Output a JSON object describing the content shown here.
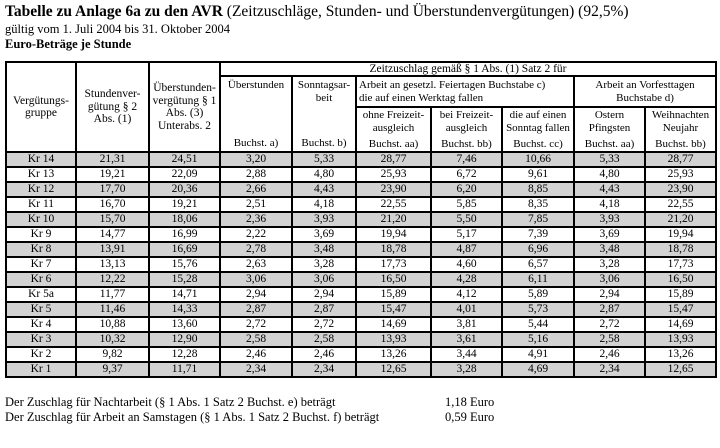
{
  "title": {
    "main_bold": "Tabelle zu Anlage 6a zu den AVR",
    "main_rest": " (Zeitzuschläge, Stunden- und Überstundenvergütungen) (92,5%)",
    "validity": "gültig vom 1. Juli 2004 bis 31. Oktober 2004",
    "subtitle": "Euro-Beträge je Stunde"
  },
  "table": {
    "header": {
      "col_group": "Vergütungs-\ngruppe",
      "col_hourly": "Stundenver-\ngütung § 2\nAbs. (1)",
      "col_overtime_pay": "Überstunden-\nvergütung § 1\nAbs. (3)\nUnterabs. 2",
      "zeitzuschlag_span": "Zeitzuschlag gemäß § 1 Abs. (1) Satz 2 für",
      "col_overtime": {
        "label": "Überstunden",
        "buchst": "Buchst. a)"
      },
      "col_sunday": {
        "label": "Sonntagsar-\nbeit",
        "buchst": "Buchst. b)"
      },
      "feiertage_group": "Arbeit an gesetzl. Feiertagen Buchstabe c)\ndie auf einen Werktag fallen",
      "vorfest_group": "Arbeit an Vorfesttagen\nBuchstabe d)",
      "sub_ohne": {
        "label": "ohne Freizeit-\nausgleich",
        "buchst": "Buchst. aa)"
      },
      "sub_bei": {
        "label": "bei Freizeit-\nausgleich",
        "buchst": "Buchst. bb)"
      },
      "sub_sonntag": {
        "label": "die auf einen\nSonntag fallen",
        "buchst": "Buchst. cc)"
      },
      "sub_ostern": {
        "label": "Ostern\nPfingsten",
        "buchst": "Buchst. aa)"
      },
      "sub_weihnachten": {
        "label": "Weihnachten\nNeujahr",
        "buchst": "Buchst. bb)"
      }
    },
    "rows": [
      {
        "group": "Kr 14",
        "values": [
          "21,31",
          "24,51",
          "3,20",
          "5,33",
          "28,77",
          "7,46",
          "10,66",
          "5,33",
          "28,77"
        ]
      },
      {
        "group": "Kr 13",
        "values": [
          "19,21",
          "22,09",
          "2,88",
          "4,80",
          "25,93",
          "6,72",
          "9,61",
          "4,80",
          "25,93"
        ]
      },
      {
        "group": "Kr 12",
        "values": [
          "17,70",
          "20,36",
          "2,66",
          "4,43",
          "23,90",
          "6,20",
          "8,85",
          "4,43",
          "23,90"
        ]
      },
      {
        "group": "Kr 11",
        "values": [
          "16,70",
          "19,21",
          "2,51",
          "4,18",
          "22,55",
          "5,85",
          "8,35",
          "4,18",
          "22,55"
        ]
      },
      {
        "group": "Kr 10",
        "values": [
          "15,70",
          "18,06",
          "2,36",
          "3,93",
          "21,20",
          "5,50",
          "7,85",
          "3,93",
          "21,20"
        ]
      },
      {
        "group": "Kr 9",
        "values": [
          "14,77",
          "16,99",
          "2,22",
          "3,69",
          "19,94",
          "5,17",
          "7,39",
          "3,69",
          "19,94"
        ]
      },
      {
        "group": "Kr 8",
        "values": [
          "13,91",
          "16,69",
          "2,78",
          "3,48",
          "18,78",
          "4,87",
          "6,96",
          "3,48",
          "18,78"
        ]
      },
      {
        "group": "Kr 7",
        "values": [
          "13,13",
          "15,76",
          "2,63",
          "3,28",
          "17,73",
          "4,60",
          "6,57",
          "3,28",
          "17,73"
        ]
      },
      {
        "group": "Kr 6",
        "values": [
          "12,22",
          "15,28",
          "3,06",
          "3,06",
          "16,50",
          "4,28",
          "6,11",
          "3,06",
          "16,50"
        ]
      },
      {
        "group": "Kr 5a",
        "values": [
          "11,77",
          "14,71",
          "2,94",
          "2,94",
          "15,89",
          "4,12",
          "5,89",
          "2,94",
          "15,89"
        ]
      },
      {
        "group": "Kr 5",
        "values": [
          "11,46",
          "14,33",
          "2,87",
          "2,87",
          "15,47",
          "4,01",
          "5,73",
          "2,87",
          "15,47"
        ]
      },
      {
        "group": "Kr 4",
        "values": [
          "10,88",
          "13,60",
          "2,72",
          "2,72",
          "14,69",
          "3,81",
          "5,44",
          "2,72",
          "14,69"
        ]
      },
      {
        "group": "Kr 3",
        "values": [
          "10,32",
          "12,90",
          "2,58",
          "2,58",
          "13,93",
          "3,61",
          "5,16",
          "2,58",
          "13,93"
        ]
      },
      {
        "group": "Kr 2",
        "values": [
          "9,82",
          "12,28",
          "2,46",
          "2,46",
          "13,26",
          "3,44",
          "4,91",
          "2,46",
          "13,26"
        ]
      },
      {
        "group": "Kr 1",
        "values": [
          "9,37",
          "11,71",
          "2,34",
          "2,34",
          "12,65",
          "3,28",
          "4,69",
          "2,34",
          "12,65"
        ]
      }
    ]
  },
  "footer": {
    "lines": [
      {
        "label": "Der Zuschlag für Nachtarbeit (§ 1 Abs. 1 Satz 2 Buchst. e) beträgt",
        "amount": "1,18 Euro"
      },
      {
        "label": "Der Zuschlag für Arbeit an Samstagen (§ 1 Abs. 1 Satz 2 Buchst. f) beträgt",
        "amount": "0,59 Euro"
      }
    ]
  },
  "colors": {
    "row_shade": "#d2d2d2",
    "border": "#000000",
    "background": "#ffffff"
  }
}
